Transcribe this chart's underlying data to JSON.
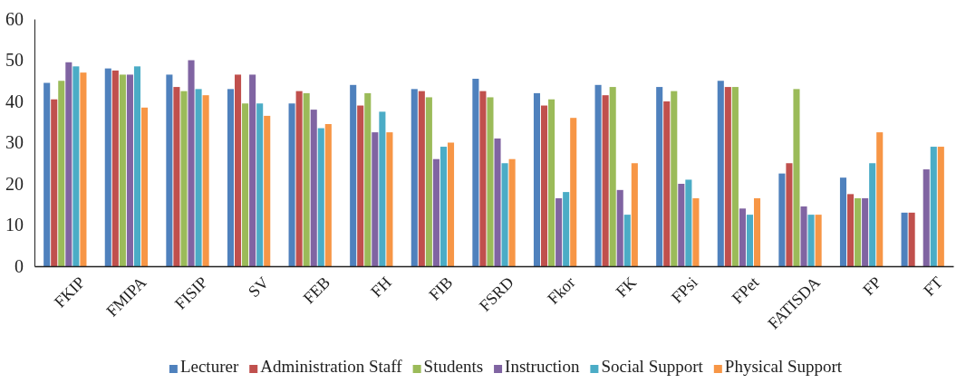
{
  "chart_data": {
    "type": "bar",
    "categories": [
      "FKIP",
      "FMIPA",
      "FISIP",
      "SV",
      "FEB",
      "FH",
      "FIB",
      "FSRD",
      "Fkor",
      "FK",
      "FPsi",
      "FPet",
      "FATISDA",
      "FP",
      "FT"
    ],
    "series": [
      {
        "name": "Lecturer",
        "color": "#4f81bd",
        "values": [
          44.5,
          48,
          46.5,
          43,
          39.5,
          44,
          43,
          45.5,
          42,
          44,
          43.5,
          45,
          22.5,
          21.5,
          13
        ]
      },
      {
        "name": "Administration Staff",
        "color": "#c0504d",
        "values": [
          40.5,
          47.5,
          43.5,
          46.5,
          42.5,
          39,
          42.5,
          42.5,
          39,
          41.5,
          40,
          43.5,
          25,
          17.5,
          13
        ]
      },
      {
        "name": "Students",
        "color": "#9bbb59",
        "values": [
          45,
          46.5,
          42.5,
          39.5,
          42,
          42,
          41,
          41,
          40.5,
          43.5,
          42.5,
          43.5,
          43,
          16.5,
          null
        ]
      },
      {
        "name": "Instruction",
        "color": "#8064a2",
        "values": [
          49.5,
          46.5,
          50,
          46.5,
          38,
          32.5,
          26,
          31,
          16.5,
          18.5,
          20,
          14,
          14.5,
          16.5,
          23.5
        ]
      },
      {
        "name": "Social Support",
        "color": "#4bacc6",
        "values": [
          48.5,
          48.5,
          43,
          39.5,
          33.5,
          37.5,
          29,
          25,
          18,
          12.5,
          21,
          12.5,
          12.5,
          25,
          29
        ]
      },
      {
        "name": "Physical Support",
        "color": "#f79646",
        "values": [
          47,
          38.5,
          41.5,
          36.5,
          34.5,
          32.5,
          30,
          26,
          36,
          25,
          16.5,
          16.5,
          12.5,
          32.5,
          29
        ]
      }
    ],
    "ylim": [
      0,
      60
    ],
    "yticks": [
      0,
      10,
      20,
      30,
      40,
      50,
      60
    ],
    "grid": false,
    "legend": "bottom"
  }
}
